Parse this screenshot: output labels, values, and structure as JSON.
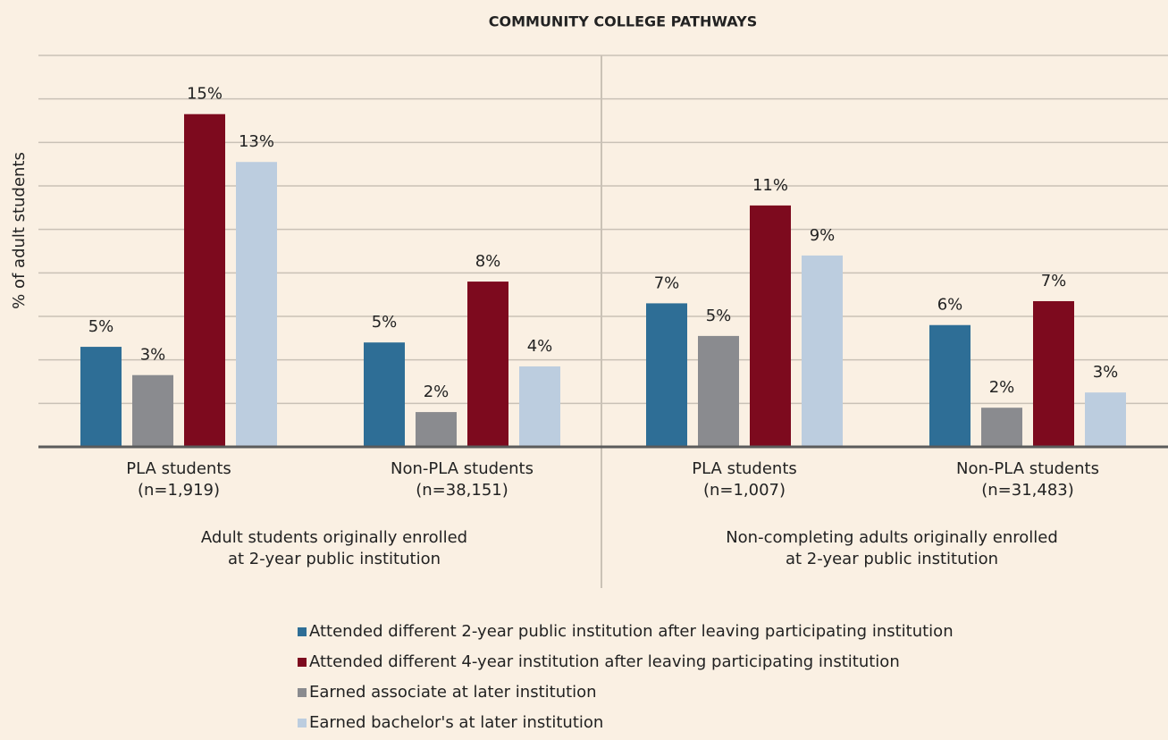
{
  "chart_data": {
    "type": "bar",
    "title": "COMMUNITY COLLEGE PATHWAYS",
    "y_label": "% of adult students",
    "categories": [
      [
        "PLA students",
        "(n=1,919)"
      ],
      [
        "Non-PLA students",
        "(n=38,151)"
      ],
      [
        "PLA students",
        "(n=1,007)"
      ],
      [
        "Non-PLA students",
        "(n=31,483)"
      ]
    ],
    "groups": [
      [
        "Adult students originally enrolled",
        "at 2-year public institution"
      ],
      [
        "Non-completing adults originally enrolled",
        "at 2-year public institution"
      ]
    ],
    "series": [
      {
        "name": "Attended different 2-year public institution after leaving participating institution",
        "color": "#2e6e96",
        "values": [
          4.6,
          4.8,
          6.6,
          5.6
        ],
        "value_labels": [
          "5%",
          "5%",
          "7%",
          "6%"
        ]
      },
      {
        "name": "Attended different 4-year institution after leaving participating institution",
        "color": "#7d0a1e",
        "values": [
          15.3,
          7.6,
          11.1,
          6.7
        ],
        "value_labels": [
          "15%",
          "8%",
          "11%",
          "7%"
        ]
      },
      {
        "name": "Earned associate at later institution",
        "color": "#8a8b8f",
        "values": [
          3.3,
          1.6,
          5.1,
          1.8
        ],
        "value_labels": [
          "3%",
          "2%",
          "5%",
          "2%"
        ]
      },
      {
        "name": "Earned bachelor's at later institution",
        "color": "#bccddf",
        "values": [
          13.1,
          3.7,
          8.8,
          2.5
        ],
        "value_labels": [
          "13%",
          "4%",
          "9%",
          "3%"
        ]
      }
    ],
    "ylim": [
      0,
      18
    ],
    "yticks": [
      0,
      2,
      4,
      6,
      8,
      10,
      12,
      14,
      16,
      18
    ],
    "grid": true
  }
}
